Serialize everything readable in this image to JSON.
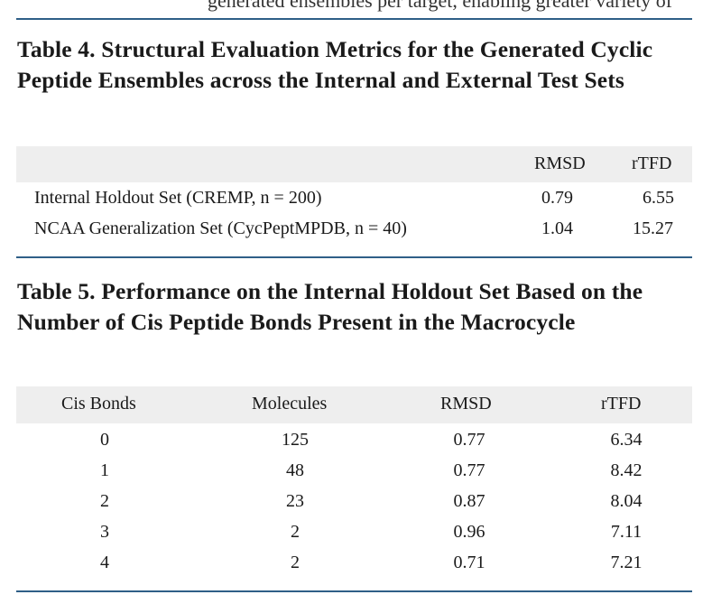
{
  "header_fragment": "generated ensembles per target, enabling greater variety of",
  "table4": {
    "caption_label": "Table 4.",
    "caption_text": "Structural Evaluation Metrics for the Generated Cyclic Peptide Ensembles across the Internal and External Test Sets",
    "columns": [
      "",
      "RMSD",
      "rTFD"
    ],
    "rows": [
      [
        "Internal Holdout Set (CREMP, n = 200)",
        "0.79",
        "6.55"
      ],
      [
        "NCAA Generalization Set (CycPeptMPDB, n = 40)",
        "1.04",
        "15.27"
      ]
    ]
  },
  "table5": {
    "caption_label": "Table 5.",
    "caption_text": "Performance on the Internal Holdout Set Based on the Number of Cis Peptide Bonds Present in the Macrocycle",
    "columns": [
      "Cis Bonds",
      "Molecules",
      "RMSD",
      "rTFD"
    ],
    "rows": [
      [
        "0",
        "125",
        "0.77",
        "6.34"
      ],
      [
        "1",
        "48",
        "0.77",
        "8.42"
      ],
      [
        "2",
        "23",
        "0.87",
        "8.04"
      ],
      [
        "3",
        "2",
        "0.96",
        "7.11"
      ],
      [
        "4",
        "2",
        "0.71",
        "7.21"
      ]
    ]
  }
}
